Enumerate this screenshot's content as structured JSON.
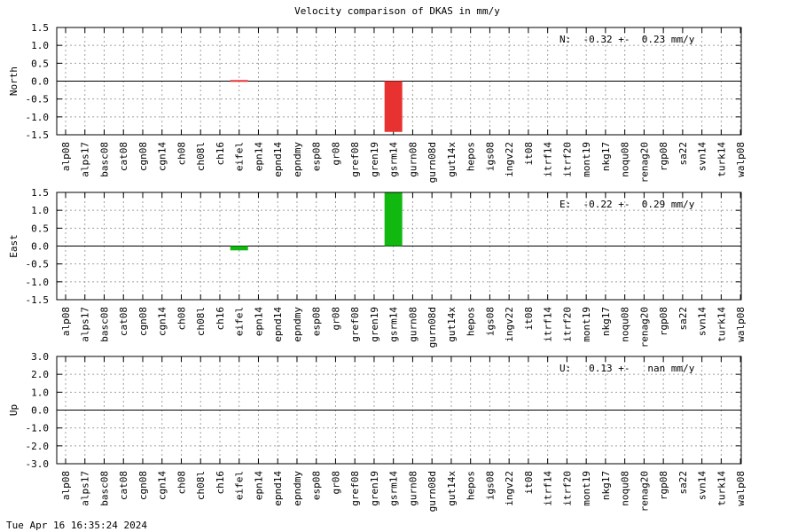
{
  "title": "Velocity comparison of DKAS in mm/y",
  "footer": "Tue Apr 16 16:35:24 2024",
  "colors": {
    "north": "#e83232",
    "east": "#10b810",
    "up": "#1f4fd8",
    "grid": "#a0a0a0"
  },
  "chart_data": [
    {
      "type": "bar",
      "ylabel": "North",
      "annotation": "N:  -0.32 +-  0.23 mm/y",
      "ylim": [
        -1.5,
        1.5
      ],
      "yticks": [
        "-1.5",
        "-1.0",
        "-0.5",
        "0.0",
        "0.5",
        "1.0",
        "1.5"
      ],
      "categories": [
        "alp08",
        "alps17",
        "basc08",
        "cat08",
        "cgn08",
        "cgn14",
        "ch08",
        "ch08l",
        "ch16",
        "eifel",
        "epn14",
        "epnd14",
        "epndmy",
        "esp08",
        "gr08",
        "gref08",
        "gren19",
        "gsrm14",
        "gurn08",
        "gurn08d",
        "gut14x",
        "hepos",
        "igs08",
        "ingv22",
        "it08",
        "itrf14",
        "itrf20",
        "mont19",
        "nkg17",
        "noqu08",
        "renag20",
        "rgp08",
        "sa22",
        "svn14",
        "turk14",
        "walp08"
      ],
      "values": [
        null,
        null,
        null,
        null,
        null,
        null,
        null,
        null,
        null,
        0.03,
        null,
        null,
        null,
        null,
        null,
        null,
        null,
        -1.42,
        null,
        null,
        null,
        null,
        null,
        null,
        null,
        null,
        null,
        null,
        null,
        null,
        null,
        null,
        null,
        null,
        null,
        null
      ]
    },
    {
      "type": "bar",
      "ylabel": "East",
      "annotation": "E:  -0.22 +-  0.29 mm/y",
      "ylim": [
        -1.5,
        1.5
      ],
      "yticks": [
        "-1.5",
        "-1.0",
        "-0.5",
        "0.0",
        "0.5",
        "1.0",
        "1.5"
      ],
      "categories": [
        "alp08",
        "alps17",
        "basc08",
        "cat08",
        "cgn08",
        "cgn14",
        "ch08",
        "ch08l",
        "ch16",
        "eifel",
        "epn14",
        "epnd14",
        "epndmy",
        "esp08",
        "gr08",
        "gref08",
        "gren19",
        "gsrm14",
        "gurn08",
        "gurn08d",
        "gut14x",
        "hepos",
        "igs08",
        "ingv22",
        "it08",
        "itrf14",
        "itrf20",
        "mont19",
        "nkg17",
        "noqu08",
        "renag20",
        "rgp08",
        "sa22",
        "svn14",
        "turk14",
        "walp08"
      ],
      "values": [
        null,
        null,
        null,
        null,
        null,
        null,
        null,
        null,
        null,
        -0.12,
        null,
        null,
        null,
        null,
        null,
        null,
        null,
        1.5,
        null,
        null,
        null,
        null,
        null,
        null,
        null,
        null,
        null,
        null,
        null,
        null,
        null,
        null,
        null,
        null,
        null,
        null
      ]
    },
    {
      "type": "bar",
      "ylabel": "Up",
      "annotation": "U:   0.13 +-   nan mm/y",
      "ylim": [
        -3.0,
        3.0
      ],
      "yticks": [
        "-3.0",
        "-2.0",
        "-1.0",
        "0.0",
        "1.0",
        "2.0",
        "3.0"
      ],
      "categories": [
        "alp08",
        "alps17",
        "basc08",
        "cat08",
        "cgn08",
        "cgn14",
        "ch08",
        "ch08l",
        "ch16",
        "eifel",
        "epn14",
        "epnd14",
        "epndmy",
        "esp08",
        "gr08",
        "gref08",
        "gren19",
        "gsrm14",
        "gurn08",
        "gurn08d",
        "gut14x",
        "hepos",
        "igs08",
        "ingv22",
        "it08",
        "itrf14",
        "itrf20",
        "mont19",
        "nkg17",
        "noqu08",
        "renag20",
        "rgp08",
        "sa22",
        "svn14",
        "turk14",
        "walp08"
      ],
      "values": [
        null,
        null,
        null,
        null,
        null,
        null,
        null,
        null,
        null,
        null,
        null,
        null,
        null,
        null,
        null,
        null,
        null,
        null,
        null,
        null,
        null,
        null,
        null,
        null,
        null,
        null,
        null,
        null,
        null,
        null,
        null,
        null,
        null,
        null,
        null,
        null
      ]
    }
  ]
}
